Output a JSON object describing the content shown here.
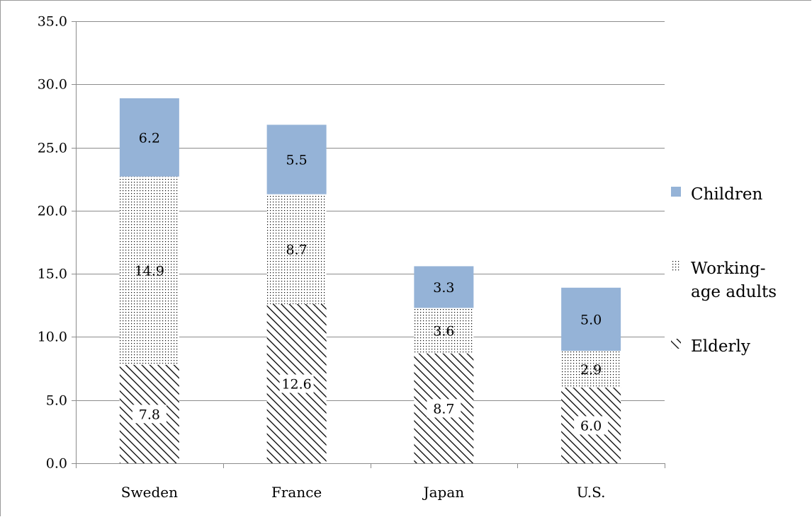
{
  "chart_data": {
    "type": "bar",
    "stacked": true,
    "title": "",
    "xlabel": "",
    "ylabel": "",
    "categories": [
      "Sweden",
      "France",
      "Japan",
      "U.S."
    ],
    "series": [
      {
        "name": "Elderly",
        "values": [
          7.8,
          12.6,
          8.7,
          6.0
        ],
        "pattern": "diagonal-hatch",
        "color": "#000000"
      },
      {
        "name": "Working-age adults",
        "values": [
          14.9,
          8.7,
          3.6,
          2.9
        ],
        "pattern": "dots",
        "color": "#000000"
      },
      {
        "name": "Children",
        "values": [
          6.2,
          5.5,
          3.3,
          5.0
        ],
        "pattern": "solid",
        "color": "#95b3d7"
      }
    ],
    "ylim": [
      0,
      35
    ],
    "yticks": [
      "0.0",
      "5.0",
      "10.0",
      "15.0",
      "20.0",
      "25.0",
      "30.0",
      "35.0"
    ],
    "grid": true,
    "legend_position": "right",
    "legend": [
      {
        "series": "Children",
        "lines": [
          "Children"
        ]
      },
      {
        "series": "Working-age adults",
        "lines": [
          "Working-",
          "age adults"
        ]
      },
      {
        "series": "Elderly",
        "lines": [
          "Elderly"
        ]
      }
    ],
    "data_labels": true
  }
}
